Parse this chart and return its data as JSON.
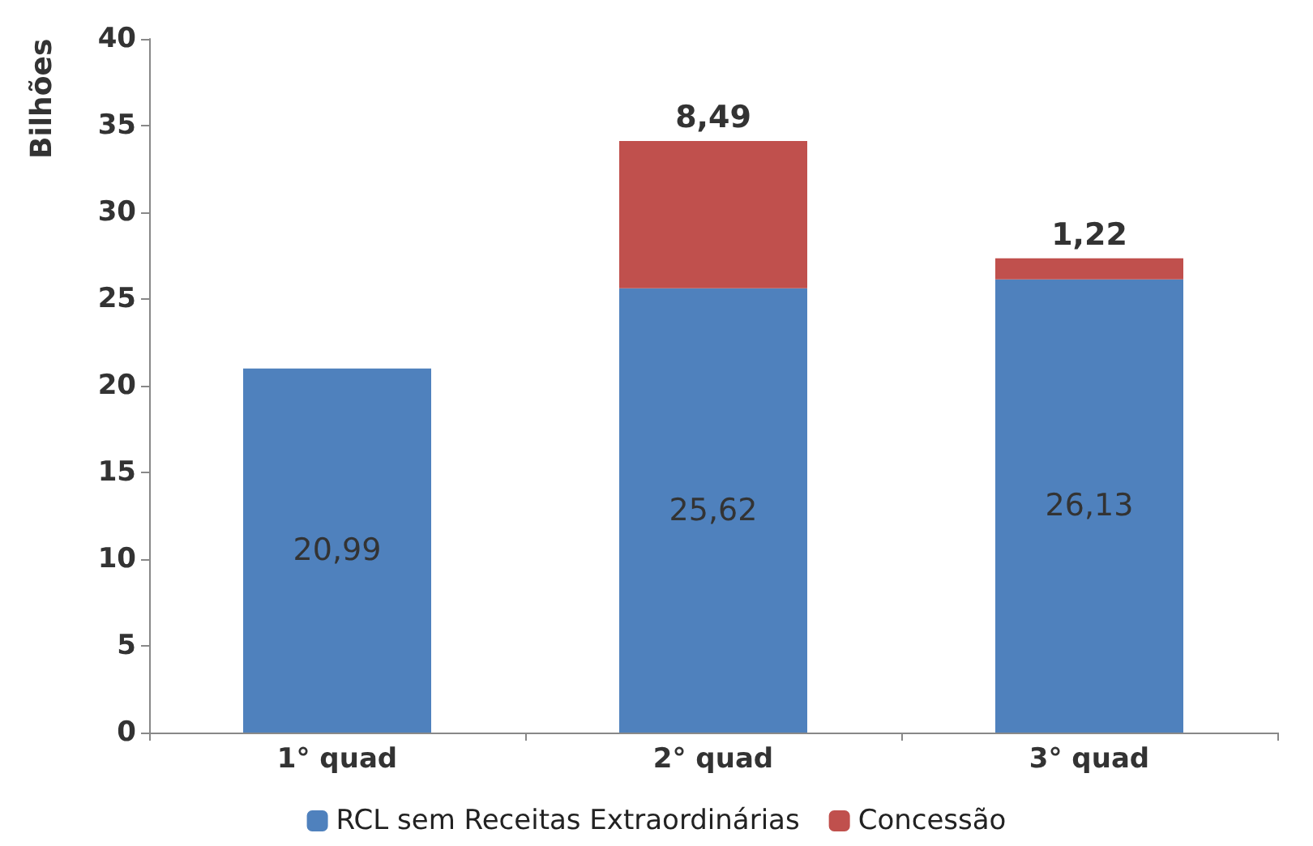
{
  "chart_data": {
    "type": "bar",
    "stacked": true,
    "ylabel": "Bilhões",
    "categories": [
      "1° quad",
      "2° quad",
      "3° quad"
    ],
    "series": [
      {
        "name": "RCL sem Receitas Extraordinárias",
        "color": "#4f81bd",
        "values": [
          20.99,
          25.62,
          26.13
        ],
        "value_labels": [
          "20,99",
          "25,62",
          "26,13"
        ]
      },
      {
        "name": "Concessão",
        "color": "#c0504d",
        "values": [
          null,
          8.49,
          1.22
        ],
        "value_labels": [
          null,
          "8,49",
          "1,22"
        ]
      }
    ],
    "ylim": [
      0,
      40
    ],
    "yticks": [
      0,
      5,
      10,
      15,
      20,
      25,
      30,
      35,
      40
    ],
    "grid": false,
    "legend": "bottom"
  }
}
